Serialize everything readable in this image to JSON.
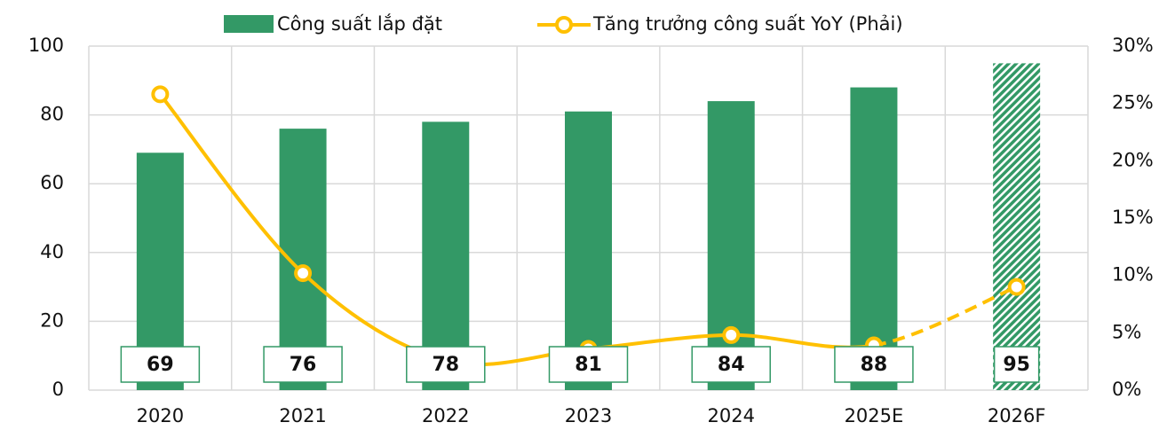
{
  "chart_data": {
    "type": "bar",
    "categories": [
      "2020",
      "2021",
      "2022",
      "2023",
      "2024",
      "2025E",
      "2026F"
    ],
    "forecast_categories": [
      "2026F"
    ],
    "series": [
      {
        "name": "Công suất lắp đặt",
        "color": "#339966",
        "values": [
          69,
          76,
          78,
          81,
          84,
          88,
          95
        ]
      },
      {
        "name": "Tăng trưởng công suất YoY (Phải)",
        "color": "#ffc000",
        "type": "line",
        "axis": "y2",
        "values": [
          25.8,
          10.2,
          2.6,
          3.6,
          4.8,
          3.9,
          9.0
        ]
      }
    ],
    "ylim": [
      0,
      100
    ],
    "yticks": [
      0,
      20,
      40,
      60,
      80,
      100
    ],
    "y2lim": [
      0,
      30
    ],
    "y2ticks": [
      {
        "value": 0,
        "label": "0%"
      },
      {
        "value": 5,
        "label": "5%"
      },
      {
        "value": 10,
        "label": "10%"
      },
      {
        "value": 15,
        "label": "15%"
      },
      {
        "value": 20,
        "label": "20%"
      },
      {
        "value": 25,
        "label": "25%"
      },
      {
        "value": 30,
        "label": "30%"
      }
    ],
    "grid": true
  }
}
